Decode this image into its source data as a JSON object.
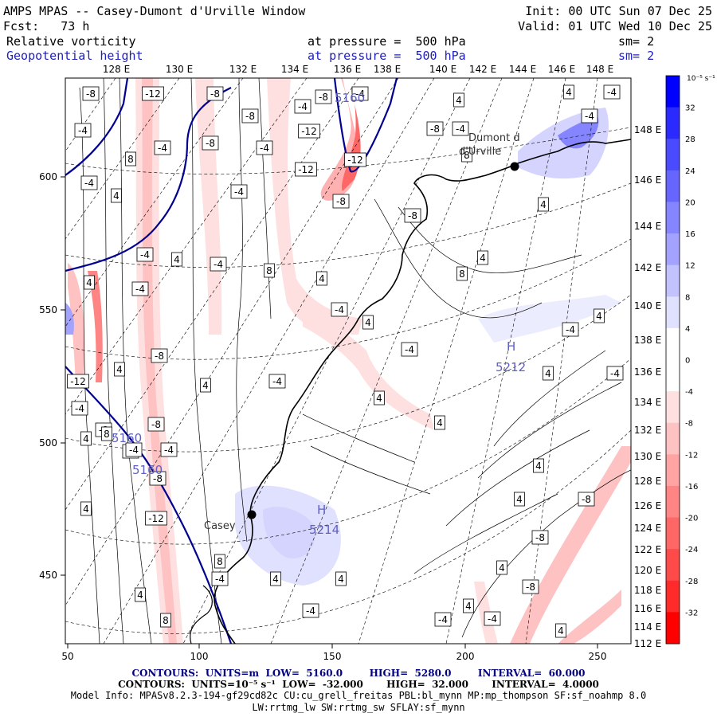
{
  "header": {
    "title": "AMPS MPAS -- Casey-Dumont d'Urville Window",
    "init": "Init: 00 UTC Sun 07 Dec 25",
    "fcst": "Fcst:   73 h",
    "valid": "Valid: 01 UTC Wed 10 Dec 25",
    "field1": {
      "name": "Relative vorticity",
      "level": "at pressure =  500 hPa",
      "smooth": "sm= 2"
    },
    "field2": {
      "name": "Geopotential height",
      "level": "at pressure =  500 hPa",
      "smooth": "sm= 2"
    }
  },
  "axes": {
    "top_lon_labels": [
      "128 E",
      "130 E",
      "132 E",
      "134 E",
      "136 E",
      "138 E",
      "140 E",
      "142 E",
      "144 E",
      "146 E",
      "148 E"
    ],
    "right_lon_labels": [
      "148 E",
      "146 E",
      "144 E",
      "142 E",
      "140 E",
      "138 E",
      "136 E",
      "134 E",
      "132 E",
      "130 E",
      "128 E",
      "126 E",
      "124 E",
      "122 E",
      "120 E",
      "118 E",
      "116 E",
      "114 E",
      "112 E"
    ],
    "x_ticks": [
      "50",
      "100",
      "150",
      "200",
      "250"
    ],
    "y_ticks": [
      "600",
      "550",
      "500",
      "450"
    ]
  },
  "colorbar": {
    "unit_label": "10⁻⁵ s⁻¹",
    "labels": [
      "32",
      "28",
      "24",
      "20",
      "16",
      "12",
      "8",
      "4",
      "0",
      "-4",
      "-8",
      "-12",
      "-16",
      "-20",
      "-24",
      "-28",
      "-32"
    ],
    "colors": [
      "#0000ff",
      "#2a2aff",
      "#4a4aff",
      "#6666ff",
      "#8585ff",
      "#a3a3ff",
      "#c2c2ff",
      "#e0e0ff",
      "#ffffff",
      "#ffffff",
      "#ffe0e0",
      "#ffc2c2",
      "#ffa3a3",
      "#ff8585",
      "#ff6666",
      "#ff4a4a",
      "#ff2a2a",
      "#ff0000"
    ]
  },
  "places": [
    {
      "name": "Dumont d'Urville",
      "line1": "Dumont d",
      "line2": "d'Urville"
    },
    {
      "name": "Casey",
      "line1": "Casey"
    }
  ],
  "height_labels": [
    "5160",
    "5160",
    "5160",
    "5212",
    "5214"
  ],
  "extrema": [
    "H",
    "H"
  ],
  "contour_labels": [
    "-8",
    "-12",
    "-8",
    "-4",
    "-8",
    "-4",
    "-12",
    "-8",
    "-4",
    "8",
    "-4",
    "4",
    "-8",
    "-4",
    "-4",
    "-12",
    "-12",
    "-8",
    "-4",
    "-8",
    "-4",
    "-8",
    "4",
    "4",
    "-4",
    "-4",
    "8",
    "4",
    "4",
    "8",
    "-4",
    "-4",
    "4",
    "4",
    "8",
    "4",
    "-4",
    "-4",
    "4",
    "-12",
    "-4",
    "-8",
    "4",
    "4",
    "-8",
    "-4",
    "4",
    "-4",
    "4",
    "4",
    "-4",
    "-4",
    "-8",
    "4",
    "-4",
    "-4",
    "-12",
    "4",
    "4",
    "8",
    "-4",
    "4",
    "4",
    "-8",
    "-8",
    "8",
    "4",
    "4",
    "-4",
    "4",
    "-4",
    "4",
    "4",
    "-4",
    "-8",
    "-4",
    "-8",
    "8",
    "4"
  ],
  "footer": {
    "line1": "CONTOURS:  UNITS=m  LOW=  5160.0        HIGH=  5280.0        INTERVAL=  60.000",
    "line2": "CONTOURS:  UNITS=10⁻⁵ s⁻¹  LOW=  -32.000       HIGH=  32.000       INTERVAL=  4.0000",
    "line3": "Model Info: MPASv8.2.3-194-gf29cd82c CU:cu_grell_freitas PBL:bl_mynn MP:mp_thompson SF:sf_noahmp 8.0",
    "line4": "LW:rrtmg_lw SW:rrtmg_sw SFLAY:sf_mynn"
  }
}
